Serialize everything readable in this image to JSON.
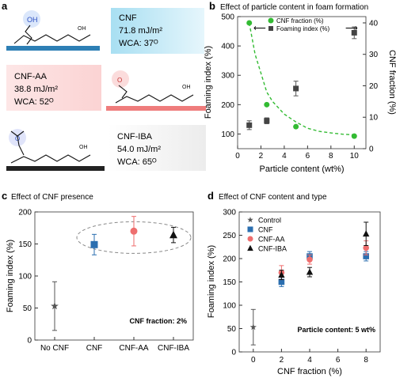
{
  "panels": {
    "a": {
      "letter": "a",
      "cards": [
        {
          "name": "CNF",
          "energy": "71.8 mJ/m²",
          "wca": "WCA: 37ᴼ",
          "group_label": "OH",
          "chain_label": "OH",
          "color": "#78c8e6"
        },
        {
          "name": "CNF-AA",
          "energy": "38.8 mJ/m²",
          "wca": "WCA: 52ᴼ",
          "group_label": "O",
          "chain_label": "OH",
          "color": "#ef7c7c"
        },
        {
          "name": "CNF-IBA",
          "energy": "54.0 mJ/m²",
          "wca": "WCA: 65ᴼ",
          "group_label": "O",
          "chain_label": "OH",
          "color": "#222222"
        }
      ]
    },
    "b": {
      "letter": "b",
      "title": "Effect of particle content in foam formation"
    },
    "c": {
      "letter": "c",
      "title": "Effect of CNF presence"
    },
    "d": {
      "letter": "d",
      "title": "Effect of CNF content and type"
    }
  },
  "chart_data": [
    {
      "id": "b",
      "type": "scatter",
      "title": "Effect of particle content in foam formation",
      "xlabel": "Particle content (wt%)",
      "ylabel": "Foaming index (%)",
      "ylabel_right": "CNF fraction (%)",
      "xlim": [
        0,
        11
      ],
      "ylim": [
        50,
        500
      ],
      "ylim_right": [
        0,
        42
      ],
      "x_ticks": [
        0,
        2,
        4,
        6,
        8,
        10
      ],
      "y_ticks": [
        100,
        200,
        300,
        400,
        500
      ],
      "y_right_ticks": [
        0,
        10,
        20,
        30,
        40
      ],
      "legend": [
        "CNF fraction (%)",
        "Foaming index (%)"
      ],
      "legend_position": "top-center",
      "series": [
        {
          "name": "CNF fraction (%)",
          "axis": "right",
          "marker": "circle",
          "color": "#33bb33",
          "x": [
            1,
            2.5,
            5,
            10
          ],
          "y": [
            40,
            14,
            7,
            4
          ]
        },
        {
          "name": "Foaming index (%)",
          "axis": "left",
          "marker": "square",
          "color": "#444444",
          "x": [
            1,
            2.5,
            5,
            10
          ],
          "y": [
            130,
            145,
            255,
            445
          ],
          "err": [
            15,
            10,
            25,
            20
          ]
        }
      ],
      "fit": {
        "color": "#33bb33",
        "x": [
          1,
          1.5,
          2,
          2.5,
          3,
          4,
          5,
          6,
          7,
          8,
          9,
          10
        ],
        "y": [
          40,
          30,
          24,
          18,
          15,
          11,
          8.5,
          6.5,
          5.5,
          5,
          4.6,
          4.4
        ]
      },
      "arrows": [
        "left",
        "right"
      ]
    },
    {
      "id": "c",
      "type": "scatter",
      "title": "Effect of CNF presence",
      "xlabel": "",
      "ylabel": "Foaming index (%)",
      "ylim": [
        0,
        200
      ],
      "y_ticks": [
        0,
        50,
        100,
        150,
        200
      ],
      "categories": [
        "No CNF",
        "CNF",
        "CNF-AA",
        "CNF-IBA"
      ],
      "series": [
        {
          "name": "No CNF",
          "marker": "star",
          "color": "#555555",
          "value": 53,
          "err": 38
        },
        {
          "name": "CNF",
          "marker": "square",
          "color": "#2b6fb0",
          "value": 149,
          "err": 16
        },
        {
          "name": "CNF-AA",
          "marker": "circle",
          "color": "#ee6e6e",
          "value": 170,
          "err": 23
        },
        {
          "name": "CNF-IBA",
          "marker": "triangle",
          "color": "#111111",
          "value": 164,
          "err": 12
        }
      ],
      "annotation": "CNF fraction: 2%"
    },
    {
      "id": "d",
      "type": "scatter",
      "title": "Effect of CNF content and type",
      "xlabel": "CNF fraction (%)",
      "ylabel": "Foaming index (%)",
      "xlim": [
        -1,
        9
      ],
      "ylim": [
        0,
        300
      ],
      "x_ticks": [
        0,
        2,
        4,
        6,
        8
      ],
      "y_ticks": [
        0,
        50,
        100,
        150,
        200,
        250,
        300
      ],
      "legend": [
        "Control",
        "CNF",
        "CNF-AA",
        "CNF-IBA"
      ],
      "legend_position": "top-left",
      "series": [
        {
          "name": "Control",
          "marker": "star",
          "color": "#555555",
          "x": [
            0
          ],
          "y": [
            53
          ],
          "err": [
            38
          ]
        },
        {
          "name": "CNF",
          "marker": "square",
          "color": "#2b6fb0",
          "x": [
            2,
            4,
            8
          ],
          "y": [
            150,
            205,
            205
          ],
          "err": [
            10,
            10,
            10
          ]
        },
        {
          "name": "CNF-AA",
          "marker": "circle",
          "color": "#ee6e6e",
          "x": [
            2,
            4,
            8
          ],
          "y": [
            170,
            198,
            223
          ],
          "err": [
            15,
            10,
            15
          ]
        },
        {
          "name": "CNF-IBA",
          "marker": "triangle",
          "color": "#111111",
          "x": [
            2,
            4,
            8
          ],
          "y": [
            165,
            171,
            253
          ],
          "err": [
            10,
            10,
            25
          ]
        }
      ],
      "annotation": "Particle content: 5 wt%"
    }
  ]
}
